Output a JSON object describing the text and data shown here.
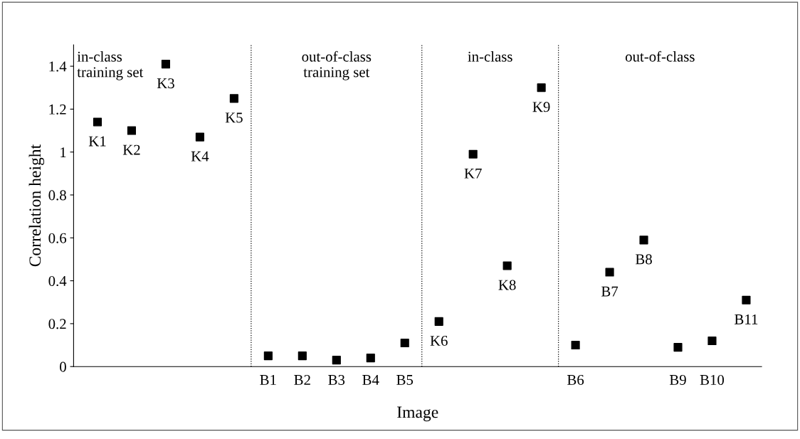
{
  "chart_data": {
    "type": "scatter",
    "xlabel": "Image",
    "ylabel": "Correlation height",
    "categories": [
      "K1",
      "K2",
      "K3",
      "K4",
      "K5",
      "B1",
      "B2",
      "B3",
      "B4",
      "B5",
      "K6",
      "K7",
      "K8",
      "K9",
      "B6",
      "B7",
      "B8",
      "B9",
      "B10",
      "B11"
    ],
    "series": [
      {
        "color": "#000000",
        "values": [
          1.14,
          1.1,
          1.41,
          1.07,
          1.25,
          0.05,
          0.05,
          0.03,
          0.04,
          0.11,
          0.21,
          0.99,
          0.47,
          1.3,
          0.1,
          0.44,
          0.59,
          0.09,
          0.12,
          0.31
        ]
      }
    ],
    "marker": "square",
    "ylim": [
      0,
      1.5
    ],
    "yticks": [
      0,
      0.2,
      0.4,
      0.6,
      0.8,
      1,
      1.2,
      1.4
    ],
    "annotations": [
      "in-class\ntraining set",
      "out-of-class\ntraining set",
      "in-class",
      "out-of-class"
    ],
    "tick_labels": "y",
    "grid": false,
    "legend": false
  }
}
